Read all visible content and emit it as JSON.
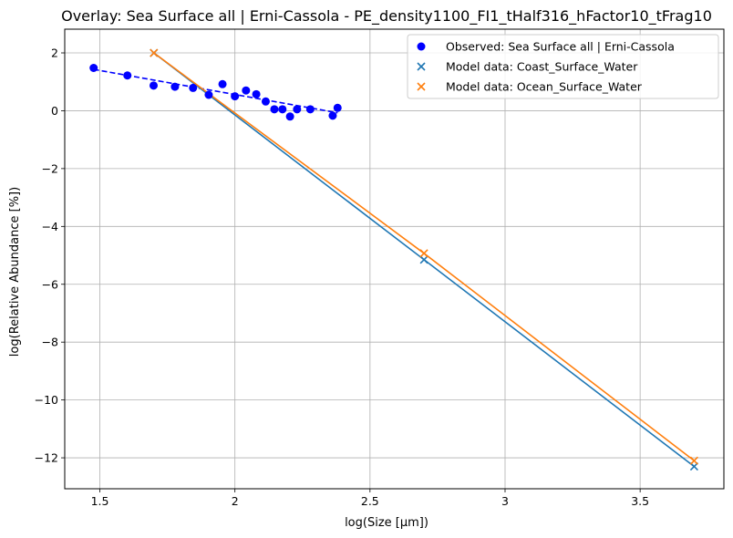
{
  "chart_data": {
    "type": "scatter",
    "title": "Overlay: Sea Surface all | Erni-Cassola - PE_density1100_FI1_tHalf316_hFactor10_tFrag10",
    "xlabel": "log(Size [µm])",
    "ylabel": "log(Relative Abundance [%])",
    "xlim": [
      1.37,
      3.81
    ],
    "ylim": [
      -13.07,
      2.82
    ],
    "xticks": [
      1.5,
      2.0,
      2.5,
      3.0,
      3.5
    ],
    "yticks": [
      -12,
      -10,
      -8,
      -6,
      -4,
      -2,
      0,
      2
    ],
    "grid": true,
    "legend_position": "top-right",
    "series": [
      {
        "name": "Observed: Sea Surface all | Erni-Cassola",
        "marker": "circle",
        "color": "#0000ff",
        "x": [
          1.477,
          1.602,
          1.699,
          1.778,
          1.845,
          1.903,
          1.954,
          2.0,
          2.041,
          2.079,
          2.114,
          2.146,
          2.176,
          2.204,
          2.23,
          2.279,
          2.362,
          2.38
        ],
        "y": [
          1.48,
          1.22,
          0.87,
          0.83,
          0.79,
          0.55,
          0.92,
          0.5,
          0.7,
          0.57,
          0.32,
          0.05,
          0.05,
          -0.2,
          0.05,
          0.05,
          -0.17,
          0.1
        ],
        "fit_line": {
          "style": "dashed",
          "x": [
            1.477,
            2.38
          ],
          "y": [
            1.43,
            -0.07
          ]
        }
      },
      {
        "name": "Model data: Coast_Surface_Water",
        "marker": "x",
        "color": "#1f77b4",
        "x": [
          1.7,
          2.7,
          3.7
        ],
        "y": [
          2.0,
          -5.15,
          -12.3
        ]
      },
      {
        "name": "Model data: Ocean_Surface_Water",
        "marker": "x",
        "color": "#ff7f0e",
        "x": [
          1.7,
          2.7,
          3.7
        ],
        "y": [
          2.0,
          -4.93,
          -12.1
        ]
      }
    ]
  }
}
